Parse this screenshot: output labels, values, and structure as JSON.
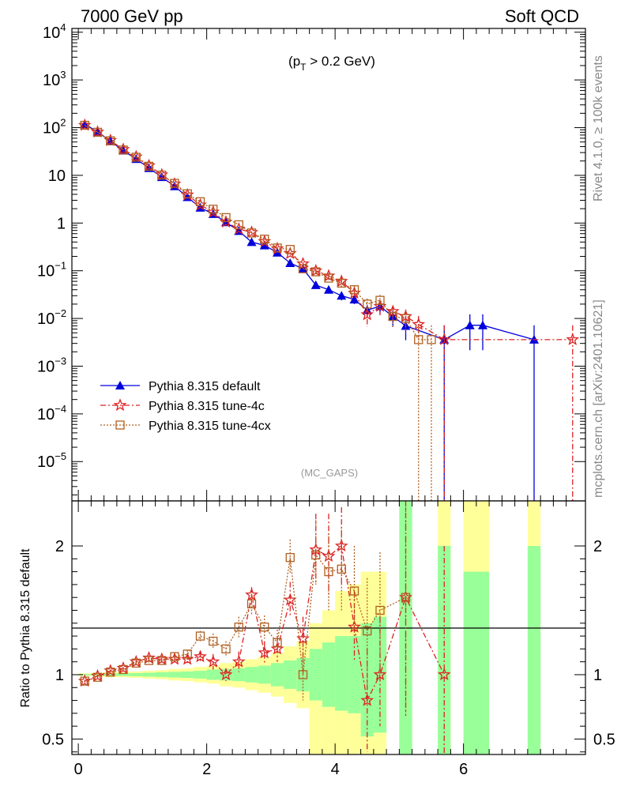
{
  "header": {
    "left": "7000 GeV pp",
    "right": "Soft QCD"
  },
  "side_labels": {
    "top": "Rivet 4.1.0, ≥ 100k events",
    "bottom": "mcplots.cern.ch [arXiv:2401.10621]"
  },
  "chart_data": {
    "type": "line",
    "main": {
      "yscale": "log",
      "ylim": [
        1.5e-06,
        12000
      ],
      "xlim": [
        -0.1,
        7.9
      ],
      "cut_label": "(p",
      "cut_sub": "T",
      "cut_rest": " > 0.2 GeV)",
      "analysis_label": "(MC_GAPS)",
      "yticks": [
        {
          "v": 10000.0,
          "base": "10",
          "exp": "4"
        },
        {
          "v": 1000.0,
          "base": "10",
          "exp": "3"
        },
        {
          "v": 100.0,
          "base": "10",
          "exp": "2"
        },
        {
          "v": 10,
          "base": "10",
          "exp": ""
        },
        {
          "v": 1,
          "base": "1",
          "exp": ""
        },
        {
          "v": 0.1,
          "base": "10",
          "exp": "−1"
        },
        {
          "v": 0.01,
          "base": "10",
          "exp": "−2"
        },
        {
          "v": 0.001,
          "base": "10",
          "exp": "−3"
        },
        {
          "v": 0.0001,
          "base": "10",
          "exp": "−4"
        },
        {
          "v": 1e-05,
          "base": "10",
          "exp": "−5"
        }
      ],
      "series": [
        {
          "name": "Pythia 8.315 default",
          "color": "#0000dd",
          "marker": "triangle",
          "x": [
            0.1,
            0.3,
            0.5,
            0.7,
            0.9,
            1.1,
            1.3,
            1.5,
            1.7,
            1.9,
            2.1,
            2.3,
            2.5,
            2.7,
            2.9,
            3.1,
            3.3,
            3.5,
            3.7,
            3.9,
            4.1,
            4.3,
            4.5,
            4.7,
            4.9,
            5.1,
            5.7,
            6.1,
            6.3,
            7.1
          ],
          "y": [
            118,
            82,
            52,
            33,
            22,
            14.2,
            9.2,
            5.9,
            3.5,
            2.1,
            1.55,
            1.04,
            0.68,
            0.4,
            0.34,
            0.24,
            0.145,
            0.11,
            0.05,
            0.04,
            0.03,
            0.025,
            0.015,
            0.018,
            0.011,
            0.007,
            0.0036,
            0.0072,
            0.0072,
            0.0036
          ],
          "err": [
            0.01,
            0.01,
            0.01,
            0.01,
            0.01,
            0.01,
            0.01,
            0.01,
            0.01,
            0.01,
            0.01,
            0.02,
            0.02,
            0.03,
            0.03,
            0.04,
            0.05,
            0.06,
            0.1,
            0.15,
            0.2,
            0.2,
            0.3,
            0.3,
            0.4,
            0.5,
            1.0,
            0.7,
            0.7,
            1.0
          ]
        },
        {
          "name": "Pythia 8.315 tune-4c",
          "color": "#dd2222",
          "marker": "star",
          "x": [
            0.1,
            0.3,
            0.5,
            0.7,
            0.9,
            1.1,
            1.3,
            1.5,
            1.7,
            1.9,
            2.1,
            2.3,
            2.5,
            2.7,
            2.9,
            3.1,
            3.3,
            3.5,
            3.7,
            3.9,
            4.1,
            4.3,
            4.5,
            4.7,
            4.9,
            5.1,
            5.3,
            5.7,
            7.7
          ],
          "y": [
            112,
            81,
            54,
            35,
            24.5,
            16,
            10.3,
            6.6,
            3.9,
            2.4,
            1.7,
            1.05,
            0.75,
            0.64,
            0.41,
            0.29,
            0.23,
            0.14,
            0.1,
            0.078,
            0.06,
            0.034,
            0.012,
            0.018,
            0.014,
            0.011,
            0.0075,
            0.0036,
            0.0036
          ],
          "err": [
            0.01,
            0.01,
            0.01,
            0.01,
            0.01,
            0.01,
            0.01,
            0.01,
            0.01,
            0.01,
            0.02,
            0.02,
            0.02,
            0.03,
            0.04,
            0.05,
            0.06,
            0.08,
            0.1,
            0.15,
            0.2,
            0.2,
            0.45,
            0.35,
            0.3,
            0.4,
            0.5,
            1.0,
            1.0
          ]
        },
        {
          "name": "Pythia 8.315 tune-4cx",
          "color": "#b05f20",
          "marker": "square",
          "x": [
            0.1,
            0.3,
            0.5,
            0.7,
            0.9,
            1.1,
            1.3,
            1.5,
            1.7,
            1.9,
            2.1,
            2.3,
            2.5,
            2.7,
            2.9,
            3.1,
            3.3,
            3.5,
            3.7,
            3.9,
            4.1,
            4.3,
            4.5,
            4.7,
            4.9,
            5.1,
            5.3,
            5.5
          ],
          "y": [
            112,
            80,
            53,
            34,
            24,
            15.5,
            10.1,
            6.8,
            4.1,
            2.8,
            1.95,
            1.3,
            0.92,
            0.62,
            0.46,
            0.3,
            0.28,
            0.11,
            0.095,
            0.07,
            0.055,
            0.04,
            0.02,
            0.024,
            0.011,
            0.01,
            0.0036,
            0.0036
          ],
          "err": [
            0.01,
            0.01,
            0.01,
            0.01,
            0.01,
            0.01,
            0.01,
            0.01,
            0.01,
            0.01,
            0.02,
            0.02,
            0.02,
            0.03,
            0.04,
            0.05,
            0.06,
            0.08,
            0.1,
            0.15,
            0.2,
            0.2,
            0.3,
            0.3,
            0.4,
            0.5,
            1.0,
            1.0
          ]
        }
      ]
    },
    "ratio": {
      "ylabel": "Ratio to Pythia 8.315 default",
      "ylim": [
        0.38,
        2.35
      ],
      "yticks": [
        {
          "v": 0.5,
          "label": "0.5"
        },
        {
          "v": 1,
          "label": "1"
        },
        {
          "v": 2,
          "label": "2"
        }
      ],
      "band_colors": {
        "outer": "#ffff99",
        "inner": "#99ff99"
      },
      "bins": [
        {
          "x0": 0.0,
          "x1": 0.2,
          "in": [
            0.995,
            1.005
          ],
          "out": [
            0.99,
            1.01
          ]
        },
        {
          "x0": 0.2,
          "x1": 0.4,
          "in": [
            0.993,
            1.007
          ],
          "out": [
            0.985,
            1.015
          ]
        },
        {
          "x0": 0.4,
          "x1": 0.6,
          "in": [
            0.99,
            1.01
          ],
          "out": [
            0.98,
            1.02
          ]
        },
        {
          "x0": 0.6,
          "x1": 0.8,
          "in": [
            0.99,
            1.01
          ],
          "out": [
            0.98,
            1.02
          ]
        },
        {
          "x0": 0.8,
          "x1": 1.0,
          "in": [
            0.988,
            1.012
          ],
          "out": [
            0.975,
            1.025
          ]
        },
        {
          "x0": 1.0,
          "x1": 1.2,
          "in": [
            0.985,
            1.015
          ],
          "out": [
            0.97,
            1.03
          ]
        },
        {
          "x0": 1.2,
          "x1": 1.4,
          "in": [
            0.982,
            1.018
          ],
          "out": [
            0.965,
            1.035
          ]
        },
        {
          "x0": 1.4,
          "x1": 1.6,
          "in": [
            0.978,
            1.022
          ],
          "out": [
            0.955,
            1.045
          ]
        },
        {
          "x0": 1.6,
          "x1": 1.8,
          "in": [
            0.975,
            1.025
          ],
          "out": [
            0.95,
            1.05
          ]
        },
        {
          "x0": 1.8,
          "x1": 2.0,
          "in": [
            0.97,
            1.03
          ],
          "out": [
            0.94,
            1.06
          ]
        },
        {
          "x0": 2.0,
          "x1": 2.2,
          "in": [
            0.96,
            1.04
          ],
          "out": [
            0.93,
            1.07
          ]
        },
        {
          "x0": 2.2,
          "x1": 2.4,
          "in": [
            0.955,
            1.045
          ],
          "out": [
            0.91,
            1.09
          ]
        },
        {
          "x0": 2.4,
          "x1": 2.6,
          "in": [
            0.95,
            1.05
          ],
          "out": [
            0.9,
            1.1
          ]
        },
        {
          "x0": 2.6,
          "x1": 2.8,
          "in": [
            0.94,
            1.06
          ],
          "out": [
            0.88,
            1.12
          ]
        },
        {
          "x0": 2.8,
          "x1": 3.0,
          "in": [
            0.93,
            1.07
          ],
          "out": [
            0.86,
            1.14
          ]
        },
        {
          "x0": 3.0,
          "x1": 3.2,
          "in": [
            0.91,
            1.09
          ],
          "out": [
            0.83,
            1.17
          ]
        },
        {
          "x0": 3.2,
          "x1": 3.4,
          "in": [
            0.89,
            1.11
          ],
          "out": [
            0.78,
            1.22
          ]
        },
        {
          "x0": 3.4,
          "x1": 3.6,
          "in": [
            0.87,
            1.13
          ],
          "out": [
            0.74,
            1.26
          ]
        },
        {
          "x0": 3.6,
          "x1": 3.8,
          "in": [
            0.8,
            1.2
          ],
          "out": [
            0.38,
            1.4
          ]
        },
        {
          "x0": 3.8,
          "x1": 4.0,
          "in": [
            0.75,
            1.25
          ],
          "out": [
            0.38,
            1.5
          ]
        },
        {
          "x0": 4.0,
          "x1": 4.2,
          "in": [
            0.72,
            1.3
          ],
          "out": [
            0.38,
            1.65
          ]
        },
        {
          "x0": 4.2,
          "x1": 4.4,
          "in": [
            0.7,
            1.3
          ],
          "out": [
            0.38,
            1.7
          ]
        },
        {
          "x0": 4.4,
          "x1": 4.6,
          "in": [
            0.52,
            1.4
          ],
          "out": [
            0.38,
            1.8
          ]
        },
        {
          "x0": 4.6,
          "x1": 4.8,
          "in": [
            0.55,
            1.45
          ],
          "out": [
            0.38,
            1.8
          ]
        },
        {
          "x0": 5.0,
          "x1": 5.2,
          "in": [
            0.38,
            2.35
          ],
          "out": [
            0.38,
            2.35
          ]
        },
        {
          "x0": 5.6,
          "x1": 5.8,
          "in": [
            0.38,
            2.0
          ],
          "out": [
            0.38,
            2.35
          ]
        },
        {
          "x0": 6.0,
          "x1": 6.4,
          "in": [
            0.38,
            1.8
          ],
          "out": [
            0.38,
            2.35
          ]
        },
        {
          "x0": 7.0,
          "x1": 7.2,
          "in": [
            0.38,
            2.0
          ],
          "out": [
            0.38,
            2.35
          ]
        }
      ],
      "series": [
        {
          "name": "Pythia 8.315 tune-4c",
          "x": [
            0.1,
            0.3,
            0.5,
            0.7,
            0.9,
            1.1,
            1.3,
            1.5,
            1.7,
            1.9,
            2.1,
            2.3,
            2.5,
            2.7,
            2.9,
            3.1,
            3.3,
            3.5,
            3.7,
            3.9,
            4.1,
            4.3,
            4.5,
            4.7,
            5.1,
            5.7
          ],
          "y": [
            0.95,
            0.99,
            1.03,
            1.05,
            1.1,
            1.13,
            1.12,
            1.12,
            1.12,
            1.14,
            1.1,
            1.0,
            1.1,
            1.62,
            1.17,
            1.2,
            1.58,
            1.28,
            1.97,
            1.92,
            2.0,
            1.37,
            0.8,
            1.0,
            1.6,
            1.0
          ],
          "lo": [
            0.94,
            0.98,
            1.02,
            1.04,
            1.08,
            1.11,
            1.1,
            1.09,
            1.09,
            1.1,
            1.04,
            0.95,
            1.02,
            1.55,
            1.08,
            1.1,
            1.45,
            1.1,
            1.7,
            1.6,
            1.7,
            1.1,
            0.4,
            0.6,
            0.68,
            0.38
          ],
          "hi": [
            0.96,
            1.0,
            1.04,
            1.06,
            1.12,
            1.15,
            1.14,
            1.15,
            1.16,
            1.18,
            1.16,
            1.05,
            1.18,
            1.68,
            1.26,
            1.3,
            1.72,
            1.45,
            2.25,
            2.25,
            2.3,
            1.65,
            1.2,
            1.45,
            2.35,
            2.0
          ]
        },
        {
          "name": "Pythia 8.315 tune-4cx",
          "x": [
            0.1,
            0.3,
            0.5,
            0.7,
            0.9,
            1.1,
            1.3,
            1.5,
            1.7,
            1.9,
            2.1,
            2.3,
            2.5,
            2.7,
            2.9,
            3.1,
            3.3,
            3.5,
            3.7,
            3.9,
            4.1,
            4.3,
            4.5,
            4.7,
            5.1
          ],
          "y": [
            0.95,
            0.98,
            1.02,
            1.04,
            1.09,
            1.11,
            1.11,
            1.14,
            1.16,
            1.3,
            1.26,
            1.2,
            1.37,
            1.55,
            1.37,
            1.25,
            1.91,
            1.0,
            1.93,
            1.8,
            1.82,
            1.65,
            1.34,
            1.5,
            1.6
          ],
          "lo": [
            0.94,
            0.97,
            1.01,
            1.03,
            1.07,
            1.09,
            1.09,
            1.11,
            1.13,
            1.26,
            1.2,
            1.14,
            1.29,
            1.47,
            1.28,
            1.15,
            1.78,
            0.8,
            1.7,
            1.5,
            1.5,
            1.3,
            0.9,
            1.0,
            0.7
          ],
          "hi": [
            0.96,
            0.99,
            1.03,
            1.05,
            1.11,
            1.13,
            1.13,
            1.17,
            1.19,
            1.34,
            1.32,
            1.26,
            1.45,
            1.63,
            1.46,
            1.35,
            2.05,
            1.25,
            2.2,
            2.1,
            2.15,
            2.0,
            1.75,
            1.95,
            2.3
          ]
        }
      ]
    },
    "xticks": [
      0,
      2,
      4,
      6
    ]
  }
}
